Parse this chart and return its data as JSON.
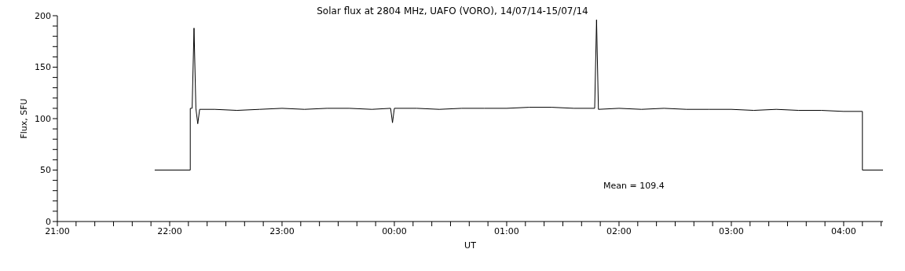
{
  "chart_data": {
    "type": "line",
    "title": "Solar flux at 2804 MHz, UAFO (VORO),  14/07/14-15/07/14",
    "xlabel": "UT",
    "ylabel": "Flux, SFU",
    "annotations": [
      "Mean =  109.4"
    ],
    "series": [
      {
        "color": "#000000",
        "x": [
          "--07-14T21:52",
          "--07-14T22:11",
          "--07-14T22:11",
          "--07-14T22:12",
          "--07-14T22:13",
          "--07-14T22:14",
          "--07-14T22:15",
          "--07-14T22:16",
          "--07-14T22:24",
          "--07-14T22:36",
          "--07-14T22:48",
          "--07-14T23:00",
          "--07-14T23:12",
          "--07-14T23:24",
          "--07-14T23:36",
          "--07-14T23:48",
          "--07-14T23:58",
          "--07-14T23:59",
          "--07-15T00:00",
          "--07-15T00:12",
          "--07-15T00:24",
          "--07-15T00:36",
          "--07-15T00:48",
          "--07-15T01:00",
          "--07-15T01:12",
          "--07-15T01:24",
          "--07-15T01:36",
          "--07-15T01:47",
          "--07-15T01:48",
          "--07-15T01:49",
          "--07-15T02:00",
          "--07-15T02:12",
          "--07-15T02:24",
          "--07-15T02:36",
          "--07-15T02:48",
          "--07-15T03:00",
          "--07-15T03:12",
          "--07-15T03:24",
          "--07-15T03:36",
          "--07-15T03:48",
          "--07-15T04:00",
          "--07-15T04:10",
          "--07-15T04:10",
          "--07-15T04:21"
        ],
        "values": [
          50,
          50,
          110,
          110,
          188,
          110,
          95,
          109,
          109,
          108,
          109,
          110,
          109,
          110,
          110,
          109,
          110,
          96,
          110,
          110,
          109,
          110,
          110,
          110,
          111,
          111,
          110,
          110,
          196,
          109,
          110,
          109,
          110,
          109,
          109,
          109,
          108,
          109,
          108,
          108,
          107,
          107,
          50,
          50
        ]
      }
    ],
    "xlim": [
      "--07-14T21:00",
      "--07-15T04:21"
    ],
    "xticks": [
      {
        "value": "--07-14T21:00",
        "label": "21:00"
      },
      {
        "value": "--07-14T21:10",
        "label": null
      },
      {
        "value": "--07-14T21:20",
        "label": null
      },
      {
        "value": "--07-14T21:30",
        "label": null
      },
      {
        "value": "--07-14T21:40",
        "label": null
      },
      {
        "value": "--07-14T21:50",
        "label": null
      },
      {
        "value": "--07-14T22:00",
        "label": "22:00"
      },
      {
        "value": "--07-14T22:10",
        "label": null
      },
      {
        "value": "--07-14T22:20",
        "label": null
      },
      {
        "value": "--07-14T22:30",
        "label": null
      },
      {
        "value": "--07-14T22:40",
        "label": null
      },
      {
        "value": "--07-14T22:50",
        "label": null
      },
      {
        "value": "--07-14T23:00",
        "label": "23:00"
      },
      {
        "value": "--07-14T23:10",
        "label": null
      },
      {
        "value": "--07-14T23:20",
        "label": null
      },
      {
        "value": "--07-14T23:30",
        "label": null
      },
      {
        "value": "--07-14T23:40",
        "label": null
      },
      {
        "value": "--07-14T23:50",
        "label": null
      },
      {
        "value": "--07-15T00:00",
        "label": "00:00"
      },
      {
        "value": "--07-15T00:10",
        "label": null
      },
      {
        "value": "--07-15T00:20",
        "label": null
      },
      {
        "value": "--07-15T00:30",
        "label": null
      },
      {
        "value": "--07-15T00:40",
        "label": null
      },
      {
        "value": "--07-15T00:50",
        "label": null
      },
      {
        "value": "--07-15T01:00",
        "label": "01:00"
      },
      {
        "value": "--07-15T01:10",
        "label": null
      },
      {
        "value": "--07-15T01:20",
        "label": null
      },
      {
        "value": "--07-15T01:30",
        "label": null
      },
      {
        "value": "--07-15T01:40",
        "label": null
      },
      {
        "value": "--07-15T01:50",
        "label": null
      },
      {
        "value": "--07-15T02:00",
        "label": "02:00"
      },
      {
        "value": "--07-15T02:10",
        "label": null
      },
      {
        "value": "--07-15T02:20",
        "label": null
      },
      {
        "value": "--07-15T02:30",
        "label": null
      },
      {
        "value": "--07-15T02:40",
        "label": null
      },
      {
        "value": "--07-15T02:50",
        "label": null
      },
      {
        "value": "--07-15T03:00",
        "label": "03:00"
      },
      {
        "value": "--07-15T03:10",
        "label": null
      },
      {
        "value": "--07-15T03:20",
        "label": null
      },
      {
        "value": "--07-15T03:30",
        "label": null
      },
      {
        "value": "--07-15T03:40",
        "label": null
      },
      {
        "value": "--07-15T03:50",
        "label": null
      },
      {
        "value": "--07-15T04:00",
        "label": "04:00"
      },
      {
        "value": "--07-15T04:10",
        "label": null
      },
      {
        "value": "--07-15T04:20",
        "label": null
      }
    ],
    "ylim": [
      0,
      200
    ],
    "yticks": [
      0,
      {
        "value": 10,
        "label": null
      },
      {
        "value": 20,
        "label": null
      },
      {
        "value": 30,
        "label": null
      },
      {
        "value": 40,
        "label": null
      },
      50,
      {
        "value": 60,
        "label": null
      },
      {
        "value": 70,
        "label": null
      },
      {
        "value": 80,
        "label": null
      },
      {
        "value": 90,
        "label": null
      },
      100,
      {
        "value": 110,
        "label": null
      },
      {
        "value": 120,
        "label": null
      },
      {
        "value": 130,
        "label": null
      },
      {
        "value": 140,
        "label": null
      },
      150,
      {
        "value": 160,
        "label": null
      },
      {
        "value": 170,
        "label": null
      },
      {
        "value": 180,
        "label": null
      },
      {
        "value": 190,
        "label": null
      },
      200
    ],
    "grid": false,
    "legend": false,
    "marker": "none",
    "line_style": "solid"
  }
}
